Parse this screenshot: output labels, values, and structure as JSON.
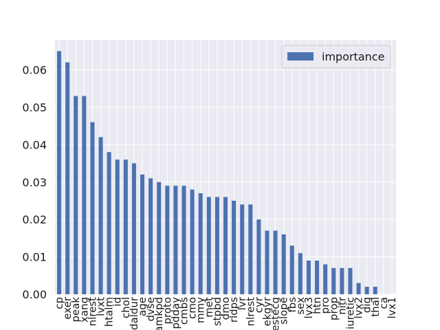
{
  "chart_data": {
    "type": "bar",
    "categories": [
      "cp",
      "exer",
      "peak",
      "xang",
      "nlrest",
      "lvxt",
      "htalm",
      "id",
      "chol",
      "daldur",
      "age",
      "dvse",
      "lamkpd",
      "proto",
      "pdday",
      "cmbs",
      "cmo",
      "mmy",
      "met",
      "stpbd",
      "dmo",
      "rldps",
      "lvr",
      "nlrest",
      "cyr",
      "ekgyr",
      "restecg",
      "slope",
      "fbs",
      "sex",
      "lvx3",
      "htn",
      "pro",
      "prop",
      "nitr",
      "diuretic",
      "lvx2",
      "dig",
      "thal",
      "ca",
      "lvx1"
    ],
    "series": [
      {
        "name": "importance",
        "values": [
          0.065,
          0.062,
          0.053,
          0.053,
          0.046,
          0.042,
          0.038,
          0.036,
          0.036,
          0.035,
          0.032,
          0.031,
          0.03,
          0.029,
          0.029,
          0.029,
          0.028,
          0.027,
          0.026,
          0.026,
          0.026,
          0.025,
          0.024,
          0.024,
          0.02,
          0.017,
          0.017,
          0.016,
          0.013,
          0.011,
          0.009,
          0.009,
          0.008,
          0.007,
          0.007,
          0.007,
          0.003,
          0.002,
          0.002,
          0.0,
          0.0
        ]
      }
    ],
    "yticks": [
      "0.00",
      "0.01",
      "0.02",
      "0.03",
      "0.04",
      "0.05",
      "0.06"
    ],
    "ylim": [
      0,
      0.068
    ],
    "grid": true,
    "legend_position": "top-right",
    "colors": {
      "bar": "#4c72b0",
      "plot_bg": "#eaeaf2",
      "grid": "#ffffff"
    }
  }
}
